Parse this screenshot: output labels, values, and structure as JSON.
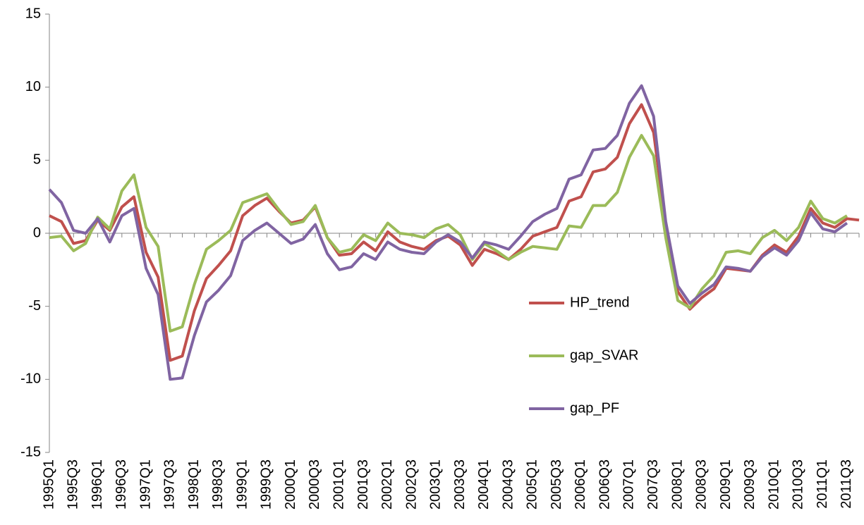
{
  "chart_data": {
    "type": "line",
    "categories": [
      "1995Q1",
      null,
      "1995Q3",
      null,
      "1996Q1",
      null,
      "1996Q3",
      null,
      "1997Q1",
      null,
      "1997Q3",
      null,
      "1998Q1",
      null,
      "1998Q3",
      null,
      "1999Q1",
      null,
      "1999Q3",
      null,
      "2000Q1",
      null,
      "2000Q3",
      null,
      "2001Q1",
      null,
      "2001Q3",
      null,
      "2002Q1",
      null,
      "2002Q3",
      null,
      "2003Q1",
      null,
      "2003Q3",
      null,
      "2004Q1",
      null,
      "2004Q3",
      null,
      "2005Q1",
      null,
      "2005Q3",
      null,
      "2006Q1",
      null,
      "2006Q3",
      null,
      "2007Q1",
      null,
      "2007Q3",
      null,
      "2008Q1",
      null,
      "2008Q3",
      null,
      "2009Q1",
      null,
      "2009Q3",
      null,
      "2010Q1",
      null,
      "2010Q3",
      null,
      "2011Q1",
      null,
      "2011Q3",
      null
    ],
    "series": [
      {
        "name": "HP_trend",
        "color": "#c0504d",
        "values": [
          1.2,
          0.8,
          -0.7,
          -0.5,
          0.9,
          0.2,
          1.8,
          2.5,
          -1.3,
          -3.0,
          -8.7,
          -8.4,
          -5.3,
          -3.1,
          -2.2,
          -1.2,
          1.2,
          1.9,
          2.4,
          1.5,
          0.7,
          0.9,
          1.8,
          -0.3,
          -1.5,
          -1.4,
          -0.6,
          -1.2,
          0.1,
          -0.6,
          -0.9,
          -1.1,
          -0.5,
          -0.2,
          -0.8,
          -2.2,
          -1.1,
          -1.4,
          -1.8,
          -1.1,
          -0.2,
          0.1,
          0.4,
          2.2,
          2.5,
          4.2,
          4.4,
          5.2,
          7.5,
          8.8,
          6.9,
          0.5,
          -4.0,
          -5.2,
          -4.4,
          -3.8,
          -2.4,
          -2.5,
          -2.6,
          -1.5,
          -0.8,
          -1.3,
          -0.2,
          1.7,
          0.7,
          0.4,
          1.0,
          0.9
        ]
      },
      {
        "name": "gap_SVAR",
        "color": "#9bbb59",
        "values": [
          -0.3,
          -0.2,
          -1.2,
          -0.7,
          1.1,
          0.3,
          2.9,
          4.0,
          0.4,
          -0.9,
          -6.7,
          -6.4,
          -3.5,
          -1.1,
          -0.5,
          0.2,
          2.1,
          2.4,
          2.7,
          1.6,
          0.6,
          0.8,
          1.9,
          -0.3,
          -1.3,
          -1.1,
          -0.1,
          -0.5,
          0.7,
          0.0,
          -0.1,
          -0.3,
          0.3,
          0.6,
          -0.1,
          -1.8,
          -0.7,
          -1.2,
          -1.8,
          -1.3,
          -0.9,
          -1.0,
          -1.1,
          0.5,
          0.4,
          1.9,
          1.9,
          2.8,
          5.2,
          6.7,
          5.3,
          -0.3,
          -4.6,
          -5.1,
          -3.8,
          -2.9,
          -1.3,
          -1.2,
          -1.4,
          -0.3,
          0.2,
          -0.5,
          0.4,
          2.2,
          1.0,
          0.7,
          1.2,
          null
        ]
      },
      {
        "name": "gap_PF",
        "color": "#8064a2",
        "values": [
          3.0,
          2.1,
          0.2,
          0.0,
          1.0,
          -0.6,
          1.2,
          1.7,
          -2.4,
          -4.2,
          -10.0,
          -9.9,
          -7.0,
          -4.7,
          -3.9,
          -2.9,
          -0.5,
          0.2,
          0.7,
          0.0,
          -0.7,
          -0.4,
          0.6,
          -1.4,
          -2.5,
          -2.3,
          -1.4,
          -1.8,
          -0.6,
          -1.1,
          -1.3,
          -1.4,
          -0.6,
          -0.1,
          -0.6,
          -1.7,
          -0.6,
          -0.8,
          -1.1,
          -0.2,
          0.8,
          1.3,
          1.7,
          3.7,
          4.0,
          5.7,
          5.8,
          6.7,
          8.9,
          10.1,
          8.0,
          0.8,
          -3.6,
          -4.8,
          -4.1,
          -3.5,
          -2.3,
          -2.4,
          -2.6,
          -1.6,
          -1.0,
          -1.5,
          -0.5,
          1.4,
          0.3,
          0.1,
          0.7,
          null
        ]
      }
    ],
    "ylim": [
      -15,
      15
    ],
    "yticks": [
      -15,
      -10,
      -5,
      0,
      5,
      10,
      15
    ],
    "legend_position": "center-right",
    "grid": false
  }
}
